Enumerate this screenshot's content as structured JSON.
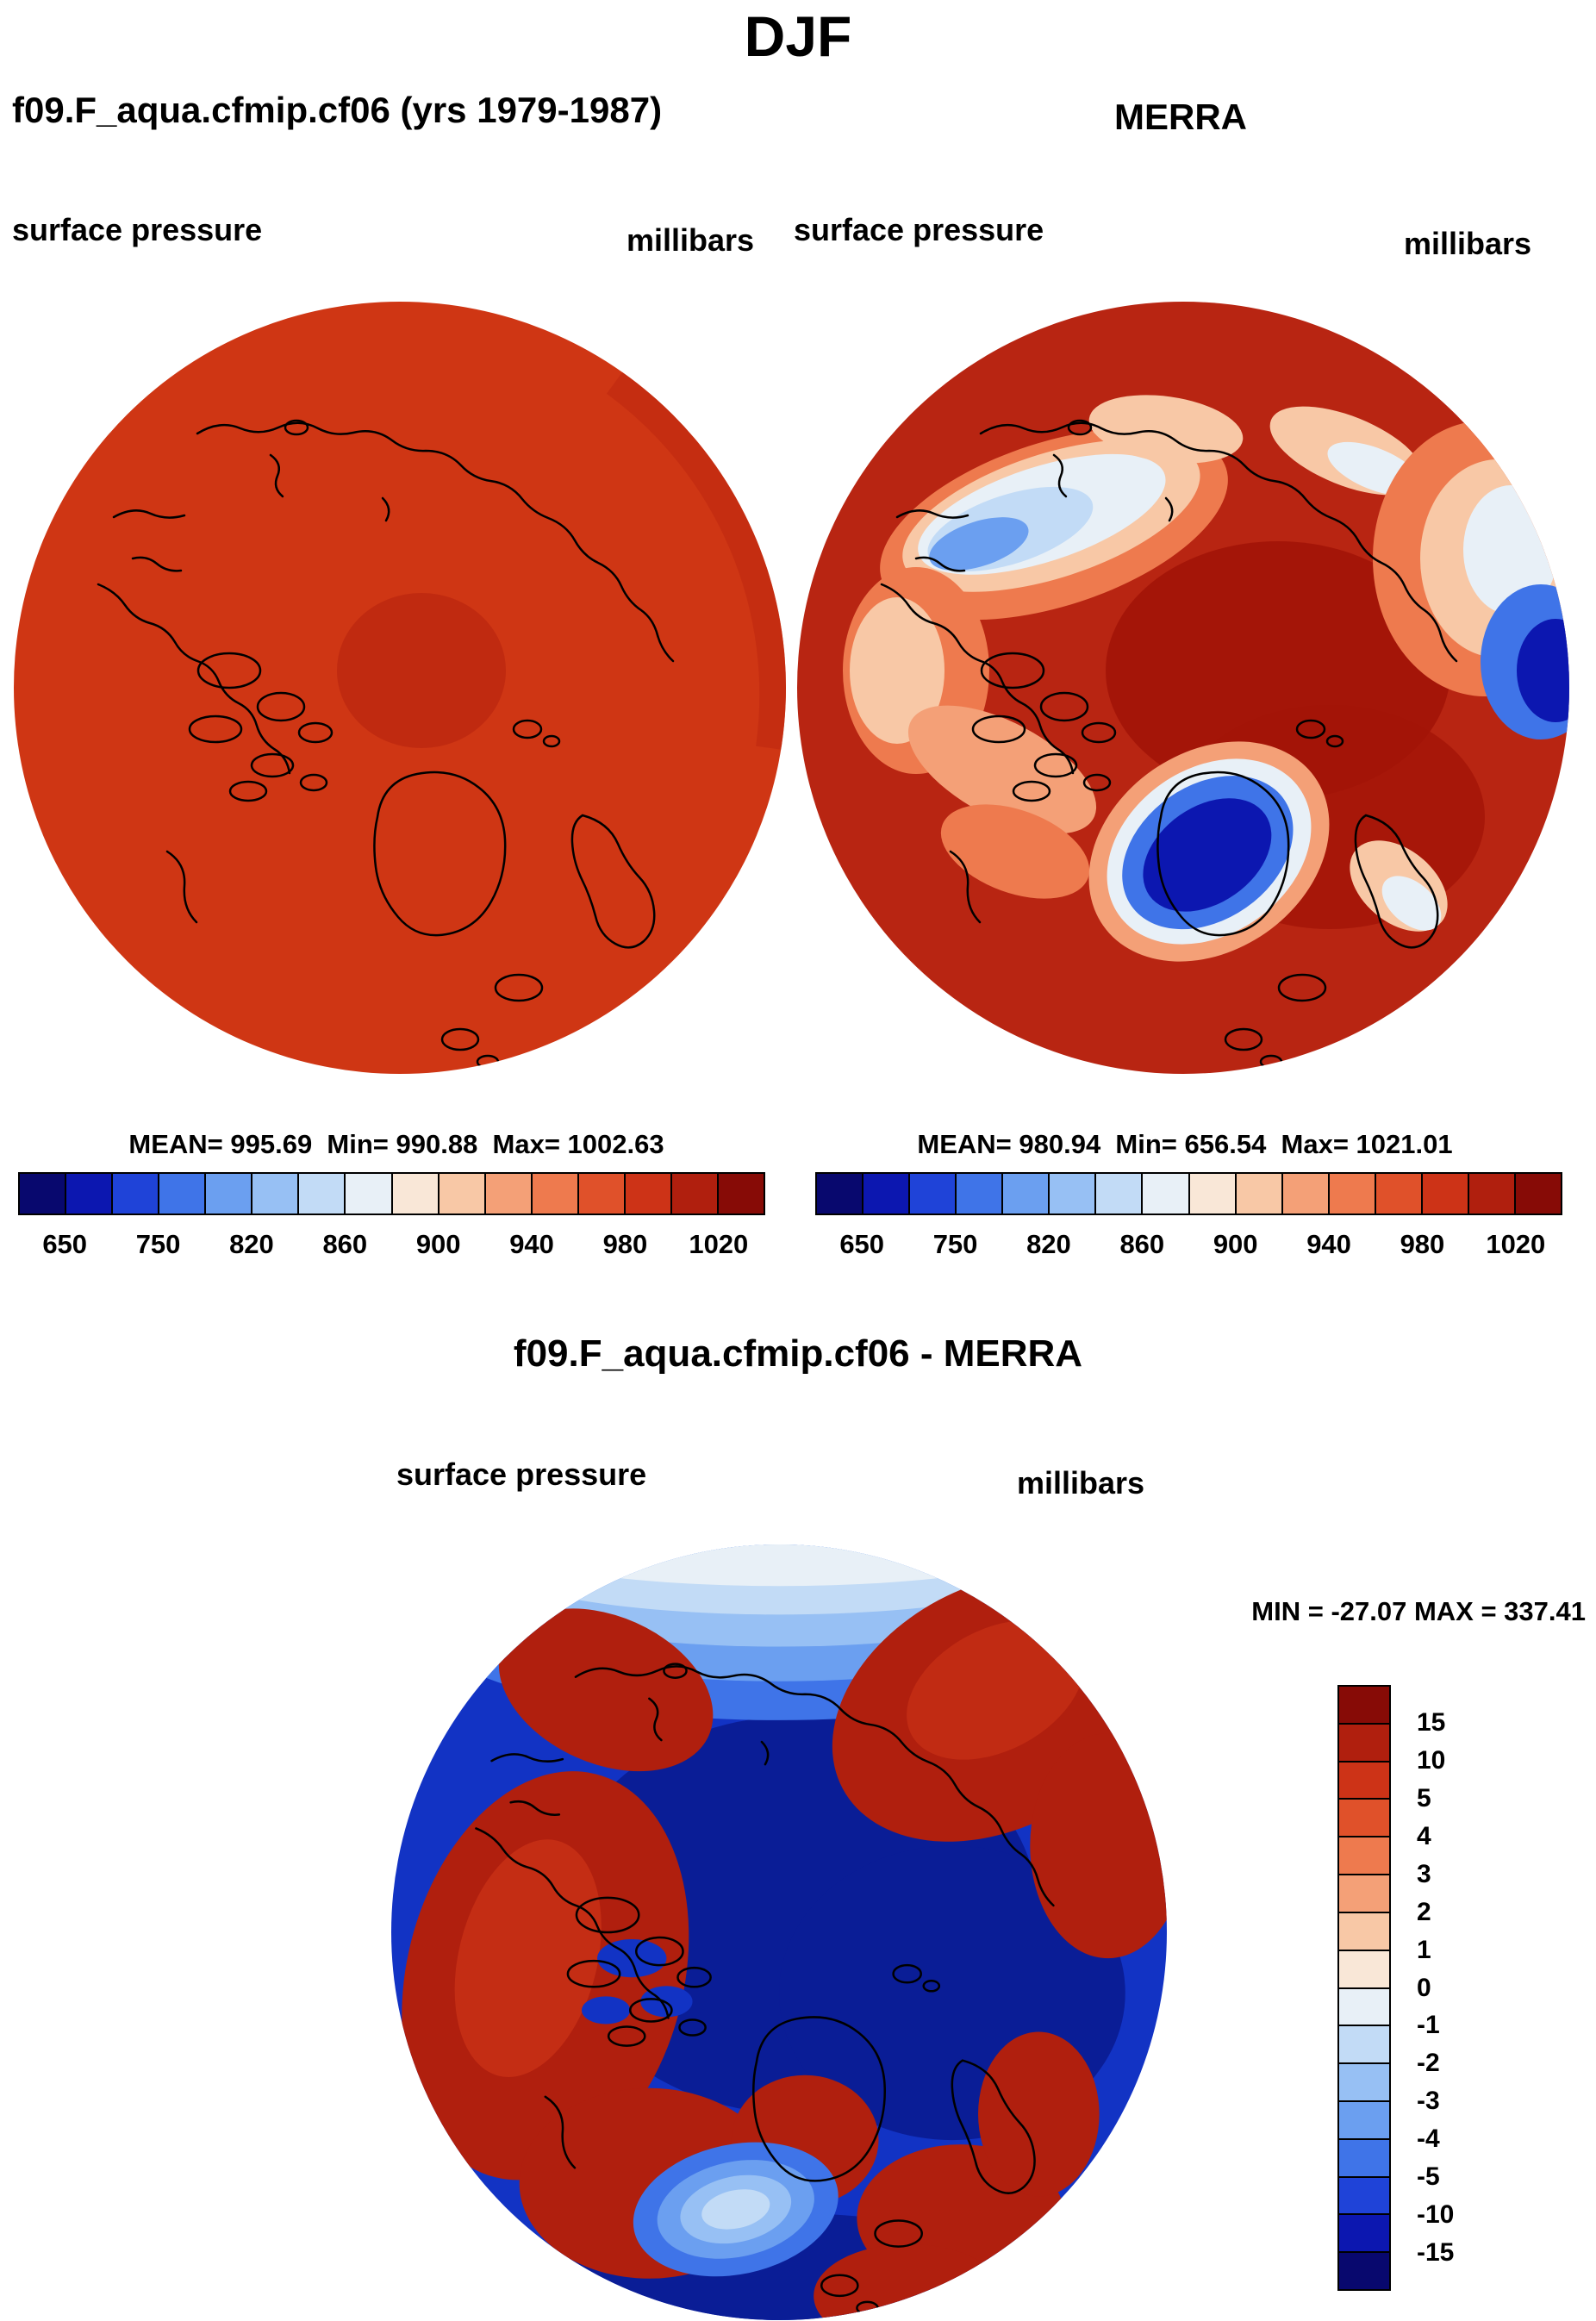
{
  "title": "DJF",
  "panels": {
    "model": {
      "title": "f09.F_aqua.cfmip.cf06 (yrs 1979-1987)",
      "field": "surface pressure",
      "units": "millibars",
      "stats": "MEAN= 995.69  Min= 990.88  Max= 1002.63"
    },
    "obs": {
      "title": "MERRA",
      "field": "surface pressure",
      "units": "millibars",
      "stats": "MEAN= 980.94  Min= 656.54  Max= 1021.01"
    },
    "diff": {
      "title": "f09.F_aqua.cfmip.cf06 - MERRA",
      "field": "surface pressure",
      "units": "millibars",
      "stats": "MIN = -27.07 MAX = 337.41"
    }
  },
  "colorbars": {
    "pressure": {
      "tick_labels": [
        "650",
        "750",
        "820",
        "860",
        "900",
        "940",
        "980",
        "1020"
      ],
      "palette": [
        "#08086e",
        "#0c17b0",
        "#1f43d8",
        "#3f74e8",
        "#6b9ff0",
        "#97c0f4",
        "#c2dbf6",
        "#e8f0f7",
        "#f9e7d7",
        "#f8c8a6",
        "#f4a077",
        "#ee7a4e",
        "#e0512a",
        "#cd3317",
        "#b01f0e",
        "#870b06"
      ]
    },
    "diff": {
      "tick_labels": [
        "15",
        "10",
        "5",
        "4",
        "3",
        "2",
        "1",
        "0",
        "-1",
        "-2",
        "-3",
        "-4",
        "-5",
        "-10",
        "-15"
      ],
      "palette": [
        "#870b06",
        "#b01f0e",
        "#cd3317",
        "#e0512a",
        "#ee7a4e",
        "#f4a077",
        "#f8c8a6",
        "#f9e7d7",
        "#e8f0f7",
        "#c2dbf6",
        "#97c0f4",
        "#6b9ff0",
        "#3f74e8",
        "#1f43d8",
        "#0c17b0",
        "#08086e"
      ]
    }
  },
  "map_colors": {
    "model_base": "#cf3614",
    "model_shade": "#c02a10",
    "obs_base": "#b82512",
    "obs_dark": "#a21408",
    "diff_base": "#1233c4",
    "diff_dark": "#0a1d96"
  },
  "chart_data": [
    {
      "type": "heatmap",
      "projection": "polar-stereographic",
      "season": "DJF",
      "panel": "model",
      "title": "f09.F_aqua.cfmip.cf06 (yrs 1979-1987)",
      "variable": "surface pressure",
      "units": "millibars",
      "stats": {
        "mean": 995.69,
        "min": 990.88,
        "max": 1002.63
      },
      "colorbar_tick_labels": [
        650,
        750,
        820,
        860,
        900,
        940,
        980,
        1020
      ],
      "legend_position": "below"
    },
    {
      "type": "heatmap",
      "projection": "polar-stereographic",
      "season": "DJF",
      "panel": "observation",
      "title": "MERRA",
      "variable": "surface pressure",
      "units": "millibars",
      "stats": {
        "mean": 980.94,
        "min": 656.54,
        "max": 1021.01
      },
      "colorbar_tick_labels": [
        650,
        750,
        820,
        860,
        900,
        940,
        980,
        1020
      ],
      "legend_position": "below"
    },
    {
      "type": "heatmap",
      "projection": "polar-stereographic",
      "season": "DJF",
      "panel": "difference",
      "title": "f09.F_aqua.cfmip.cf06 - MERRA",
      "variable": "surface pressure",
      "units": "millibars",
      "stats": {
        "min": -27.07,
        "max": 337.41
      },
      "colorbar_tick_labels": [
        15,
        10,
        5,
        4,
        3,
        2,
        1,
        0,
        -1,
        -2,
        -3,
        -4,
        -5,
        -10,
        -15
      ],
      "legend_position": "right"
    }
  ]
}
